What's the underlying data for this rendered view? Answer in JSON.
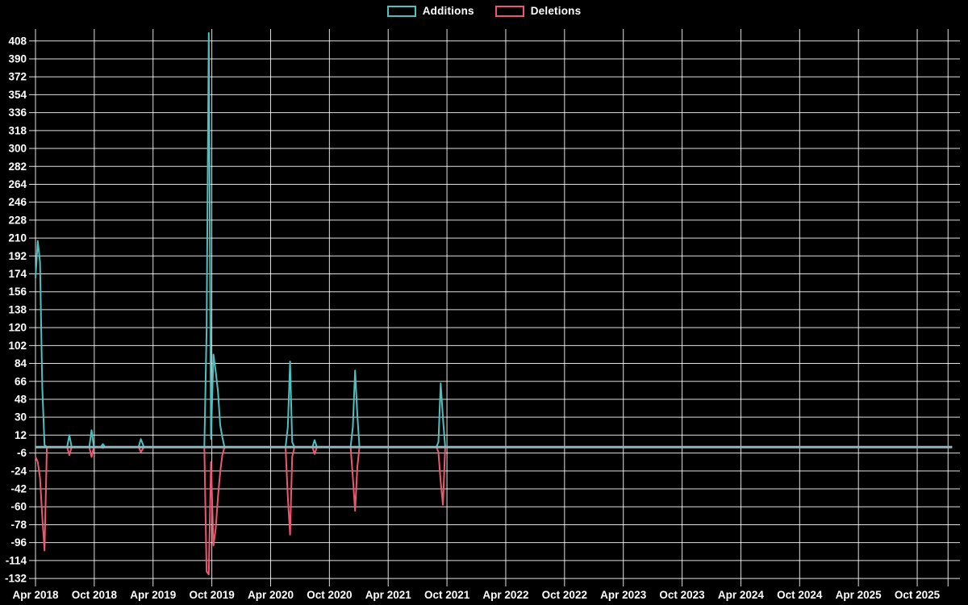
{
  "chart_data": {
    "type": "line",
    "title": "",
    "background_color": "#000000",
    "grid": true,
    "grid_color": "rgba(255,255,255,0.88)",
    "text_color": "#ffffff",
    "zero_baseline_color": "#8FB6BD",
    "legend_position": "top-center",
    "legend": [
      {
        "name": "Additions",
        "color": "#4DC0C0"
      },
      {
        "name": "Deletions",
        "color": "#EE5772"
      }
    ],
    "y_ticks": [
      408,
      390,
      372,
      354,
      336,
      318,
      300,
      282,
      264,
      246,
      228,
      210,
      192,
      174,
      156,
      138,
      120,
      102,
      84,
      66,
      48,
      30,
      12,
      -6,
      -24,
      -42,
      -60,
      -78,
      -96,
      -114,
      -132
    ],
    "y_range": [
      -132,
      408
    ],
    "y_tick_step": 18,
    "x_tick_labels": [
      "Apr 2018",
      "Oct 2018",
      "Apr 2019",
      "Oct 2019",
      "Apr 2020",
      "Oct 2020",
      "Apr 2021",
      "Oct 2021",
      "Apr 2022",
      "Oct 2022",
      "Apr 2023",
      "Oct 2023",
      "Apr 2024",
      "Oct 2024",
      "Apr 2025",
      "Oct 2025"
    ],
    "weeks": [
      {
        "date": "2018-04-01",
        "additions": 170,
        "deletions": -10
      },
      {
        "date": "2018-04-08",
        "additions": 207,
        "deletions": -15
      },
      {
        "date": "2018-04-15",
        "additions": 186,
        "deletions": -31
      },
      {
        "date": "2018-04-22",
        "additions": 60,
        "deletions": -70
      },
      {
        "date": "2018-04-29",
        "additions": 2,
        "deletions": -104
      },
      {
        "date": "2018-05-06",
        "additions": 0,
        "deletions": 0
      },
      {
        "date": "2018-07-08",
        "additions": 0,
        "deletions": 0
      },
      {
        "date": "2018-07-15",
        "additions": 12,
        "deletions": -8
      },
      {
        "date": "2018-07-22",
        "additions": 0,
        "deletions": 0
      },
      {
        "date": "2018-09-16",
        "additions": 0,
        "deletions": 0
      },
      {
        "date": "2018-09-23",
        "additions": 17,
        "deletions": -10
      },
      {
        "date": "2018-09-30",
        "additions": 0,
        "deletions": 0
      },
      {
        "date": "2018-10-21",
        "additions": 0,
        "deletions": 0
      },
      {
        "date": "2018-10-28",
        "additions": 3,
        "deletions": -1
      },
      {
        "date": "2018-11-04",
        "additions": 0,
        "deletions": 0
      },
      {
        "date": "2019-02-17",
        "additions": 0,
        "deletions": 0
      },
      {
        "date": "2019-02-24",
        "additions": 8,
        "deletions": -5
      },
      {
        "date": "2019-03-03",
        "additions": 0,
        "deletions": 0
      },
      {
        "date": "2019-09-08",
        "additions": 0,
        "deletions": 0
      },
      {
        "date": "2019-09-15",
        "additions": 117,
        "deletions": -125
      },
      {
        "date": "2019-09-22",
        "additions": 416,
        "deletions": -128
      },
      {
        "date": "2019-09-29",
        "additions": 8,
        "deletions": -15
      },
      {
        "date": "2019-10-06",
        "additions": 93,
        "deletions": -99
      },
      {
        "date": "2019-10-13",
        "additions": 76,
        "deletions": -82
      },
      {
        "date": "2019-10-20",
        "additions": 56,
        "deletions": -50
      },
      {
        "date": "2019-10-27",
        "additions": 22,
        "deletions": -25
      },
      {
        "date": "2019-11-03",
        "additions": 10,
        "deletions": -8
      },
      {
        "date": "2019-11-10",
        "additions": 0,
        "deletions": 0
      },
      {
        "date": "2020-05-17",
        "additions": 0,
        "deletions": 0
      },
      {
        "date": "2020-05-24",
        "additions": 20,
        "deletions": -50
      },
      {
        "date": "2020-05-31",
        "additions": 86,
        "deletions": -88
      },
      {
        "date": "2020-06-07",
        "additions": 5,
        "deletions": -10
      },
      {
        "date": "2020-06-14",
        "additions": 0,
        "deletions": 0
      },
      {
        "date": "2020-08-09",
        "additions": 0,
        "deletions": 0
      },
      {
        "date": "2020-08-16",
        "additions": 7,
        "deletions": -7
      },
      {
        "date": "2020-08-23",
        "additions": 0,
        "deletions": 0
      },
      {
        "date": "2020-12-06",
        "additions": 0,
        "deletions": 0
      },
      {
        "date": "2020-12-13",
        "additions": 20,
        "deletions": -30
      },
      {
        "date": "2020-12-20",
        "additions": 77,
        "deletions": -64
      },
      {
        "date": "2020-12-27",
        "additions": 32,
        "deletions": -20
      },
      {
        "date": "2021-01-03",
        "additions": 0,
        "deletions": 0
      },
      {
        "date": "2021-08-29",
        "additions": 0,
        "deletions": 0
      },
      {
        "date": "2021-09-05",
        "additions": 5,
        "deletions": -5
      },
      {
        "date": "2021-09-12",
        "additions": 64,
        "deletions": -35
      },
      {
        "date": "2021-09-19",
        "additions": 29,
        "deletions": -58
      },
      {
        "date": "2021-09-26",
        "additions": 0,
        "deletions": 0
      },
      {
        "date": "2026-01-18",
        "additions": 0,
        "deletions": 0
      }
    ]
  }
}
